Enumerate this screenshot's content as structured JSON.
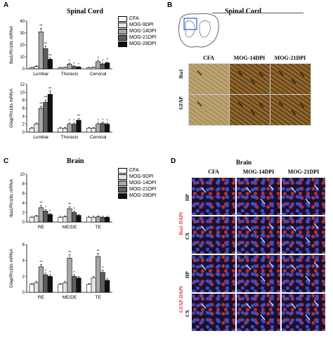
{
  "panels": {
    "A": {
      "letter": "A",
      "title": "Spinal Cord"
    },
    "B": {
      "letter": "B",
      "title": "Spinal Cord",
      "columns": [
        "CFA",
        "MOG-14DPI",
        "MOG-21DPI"
      ],
      "rows": [
        "Iba1",
        "GFAP"
      ]
    },
    "C": {
      "letter": "C",
      "title": "Brain"
    },
    "D": {
      "letter": "D",
      "title": "Brain",
      "columns": [
        "CFA",
        "MOG-14DPI",
        "MOG-21DPI"
      ],
      "rows": [
        "HP",
        "CX",
        "HP",
        "CX"
      ],
      "row_groups": [
        "Iba1-DAPI",
        "GFAP-DAPI"
      ]
    }
  },
  "legend": [
    "CFA",
    "MOG-9DPI",
    "MOG-14DPI",
    "MOG-21DPI",
    "MOG-28DPI"
  ],
  "colors": {
    "series": [
      "#ffffff",
      "#e4e4e4",
      "#a8a8a8",
      "#5e5e5e",
      "#111111"
    ],
    "iba1": "#e03030",
    "dapi": "#3a4fc8",
    "ihc_bg": "#c8b48a",
    "ihc_brown": "#6b4a1e"
  },
  "chart_data": [
    {
      "type": "bar",
      "ylabel": "Iba1/Rn18s mRNA",
      "categories": [
        "Lumbar",
        "Thoracic",
        "Cervical"
      ],
      "ylim": [
        0,
        40
      ],
      "yticks": [
        0,
        10,
        20,
        30,
        40
      ],
      "series": [
        {
          "name": "CFA",
          "values": [
            1,
            1,
            1
          ],
          "errors": [
            0.3,
            0.3,
            0.3
          ]
        },
        {
          "name": "MOG-9DPI",
          "values": [
            2,
            1.2,
            1.3
          ],
          "errors": [
            0.5,
            0.3,
            0.3
          ]
        },
        {
          "name": "MOG-14DPI",
          "values": [
            31,
            4,
            6
          ],
          "errors": [
            3,
            0.8,
            1.2
          ]
        },
        {
          "name": "MOG-21DPI",
          "values": [
            17,
            2,
            4
          ],
          "errors": [
            2,
            0.5,
            0.8
          ]
        },
        {
          "name": "MOG-28DPI",
          "values": [
            8,
            1.5,
            5
          ],
          "errors": [
            1,
            0.4,
            0.8
          ]
        }
      ],
      "stars": [
        [
          "**",
          "*",
          "*"
        ],
        [
          "**",
          "*",
          "*"
        ],
        [
          "**",
          "*",
          "*"
        ]
      ]
    },
    {
      "type": "bar",
      "ylabel": "Gfap/Rn18s mRNA",
      "categories": [
        "Lumbar",
        "Thoracic",
        "Cervical"
      ],
      "ylim": [
        0,
        12
      ],
      "yticks": [
        0,
        2,
        4,
        6,
        8,
        10,
        12
      ],
      "series": [
        {
          "name": "CFA",
          "values": [
            1,
            1,
            1
          ],
          "errors": [
            0.2,
            0.2,
            0.2
          ]
        },
        {
          "name": "MOG-9DPI",
          "values": [
            2,
            1,
            1
          ],
          "errors": [
            0.3,
            0.2,
            0.2
          ]
        },
        {
          "name": "MOG-14DPI",
          "values": [
            6,
            2,
            2
          ],
          "errors": [
            0.5,
            0.3,
            0.3
          ]
        },
        {
          "name": "MOG-21DPI",
          "values": [
            7.5,
            2,
            2.2
          ],
          "errors": [
            0.6,
            0.3,
            0.3
          ]
        },
        {
          "name": "MOG-28DPI",
          "values": [
            9.5,
            3,
            2
          ],
          "errors": [
            0.8,
            0.4,
            0.3
          ]
        }
      ],
      "stars": [
        [
          "**",
          "*",
          "*"
        ],
        [
          "**",
          "*",
          "*"
        ],
        [
          "**",
          "**",
          "*"
        ]
      ]
    },
    {
      "type": "bar",
      "ylabel": "Iba1/Rn18s mRNA",
      "categories": [
        "RE",
        "ME/DE",
        "TE"
      ],
      "ylim": [
        0,
        10
      ],
      "yticks": [
        0,
        2,
        4,
        6,
        8,
        10
      ],
      "series": [
        {
          "name": "CFA",
          "values": [
            1,
            1,
            1
          ],
          "errors": [
            0.2,
            0.2,
            0.2
          ]
        },
        {
          "name": "MOG-9DPI",
          "values": [
            1.2,
            1.1,
            1
          ],
          "errors": [
            0.2,
            0.2,
            0.2
          ]
        },
        {
          "name": "MOG-14DPI",
          "values": [
            3,
            2.8,
            1.1
          ],
          "errors": [
            0.5,
            0.4,
            0.2
          ]
        },
        {
          "name": "MOG-21DPI",
          "values": [
            2.3,
            2,
            1
          ],
          "errors": [
            0.3,
            0.3,
            0.2
          ]
        },
        {
          "name": "MOG-28DPI",
          "values": [
            1.6,
            1.4,
            1
          ],
          "errors": [
            0.2,
            0.2,
            0.2
          ]
        }
      ],
      "stars": [
        [
          "**",
          "**",
          ""
        ],
        [
          "*",
          "*",
          ""
        ],
        [
          "*",
          "",
          ""
        ]
      ]
    },
    {
      "type": "bar",
      "ylabel": "Gfap/Rn18s mRNA",
      "categories": [
        "RE",
        "ME/DE",
        "TE"
      ],
      "ylim": [
        0,
        6
      ],
      "yticks": [
        0,
        2,
        4,
        6
      ],
      "series": [
        {
          "name": "CFA",
          "values": [
            1,
            1,
            1
          ],
          "errors": [
            0.1,
            0.1,
            0.1
          ]
        },
        {
          "name": "MOG-9DPI",
          "values": [
            1.2,
            1.2,
            1.8
          ],
          "errors": [
            0.2,
            0.2,
            0.2
          ]
        },
        {
          "name": "MOG-14DPI",
          "values": [
            3.2,
            4.3,
            4.5
          ],
          "errors": [
            0.3,
            0.4,
            0.4
          ]
        },
        {
          "name": "MOG-21DPI",
          "values": [
            2.2,
            2,
            2.5
          ],
          "errors": [
            0.2,
            0.2,
            0.3
          ]
        },
        {
          "name": "MOG-28DPI",
          "values": [
            2,
            1.8,
            1.5
          ],
          "errors": [
            0.2,
            0.2,
            0.2
          ]
        }
      ],
      "stars": [
        [
          "**",
          "**",
          "**"
        ],
        [
          "*",
          "*",
          "*"
        ],
        [
          "*",
          "",
          ""
        ]
      ]
    }
  ]
}
